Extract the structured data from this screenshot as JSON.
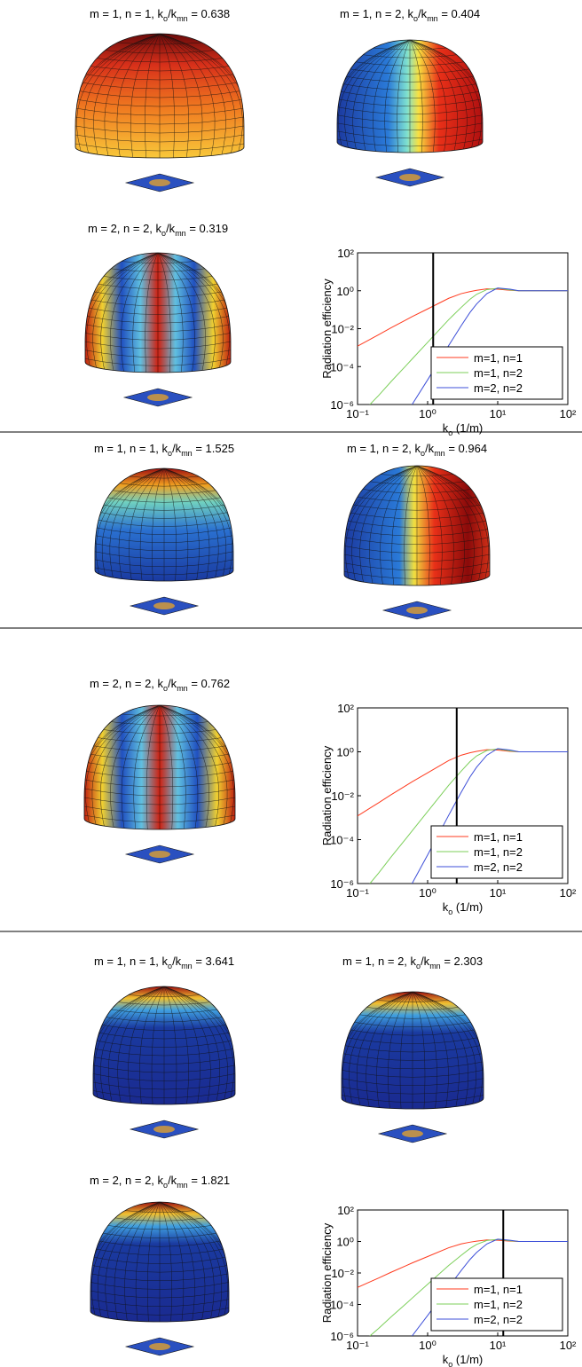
{
  "plots": [
    {
      "title": [
        "m = 1, n = 1, k",
        "o",
        "/k",
        "mn",
        " = 0.638"
      ]
    },
    {
      "title": [
        "m = 1, n = 2, k",
        "o",
        "/k",
        "mn",
        " = 0.404"
      ]
    },
    {
      "title": [
        "m = 2, n = 2, k",
        "o",
        "/k",
        "mn",
        " = 0.319"
      ]
    },
    {
      "title": [
        "m = 1, n = 1, k",
        "o",
        "/k",
        "mn",
        " = 1.525"
      ]
    },
    {
      "title": [
        "m = 1, n = 2, k",
        "o",
        "/k",
        "mn",
        " = 0.964"
      ]
    },
    {
      "title": [
        "m = 2, n = 2, k",
        "o",
        "/k",
        "mn",
        " = 0.762"
      ]
    },
    {
      "title": [
        "m = 1, n = 1, k",
        "o",
        "/k",
        "mn",
        " = 3.641"
      ]
    },
    {
      "title": [
        "m = 1, n = 2, k",
        "o",
        "/k",
        "mn",
        " = 2.303"
      ]
    },
    {
      "title": [
        "m = 2, n = 2, k",
        "o",
        "/k",
        "mn",
        " = 1.821"
      ]
    }
  ],
  "chart_data": [
    {
      "type": "line",
      "ylabel": "Radiation efficiency",
      "xlabel": [
        "k",
        "o",
        " (1/m)"
      ],
      "xscale": "log",
      "yscale": "log",
      "legend": "lower right",
      "vline": 1.2,
      "xlim": [
        0.1,
        100
      ],
      "ylim": [
        1e-06,
        100
      ],
      "xticks": [
        {
          "value": 0.1,
          "label": "10⁻¹"
        },
        {
          "value": 1,
          "label": "10⁰"
        },
        {
          "value": 10,
          "label": "10¹"
        },
        {
          "value": 100,
          "label": "10²"
        }
      ],
      "yticks": [
        {
          "value": 1e-06,
          "label": "10⁻⁶"
        },
        {
          "value": 0.0001,
          "label": "10⁻⁴"
        },
        {
          "value": 0.01,
          "label": "10⁻²"
        },
        {
          "value": 1,
          "label": "10⁰"
        },
        {
          "value": 100,
          "label": "10²"
        }
      ],
      "x": [
        0.1,
        0.15,
        0.2,
        0.3,
        0.5,
        0.6,
        1,
        2,
        3,
        4,
        5,
        7,
        10,
        15,
        20,
        30,
        50,
        100
      ],
      "series": [
        {
          "name": "m=1, n=1",
          "color": "#ff3b1f",
          "values": [
            0.0012,
            0.0027,
            0.0048,
            0.011,
            0.03,
            0.043,
            0.11,
            0.4,
            0.7,
            0.9,
            1.05,
            1.25,
            1.2,
            1.05,
            1,
            1,
            1,
            1
          ]
        },
        {
          "name": "m=1, n=2",
          "color": "#7ccf5a",
          "values": [
            null,
            1e-06,
            3e-06,
            1.6e-05,
            0.00012,
            0.00025,
            0.0019,
            0.03,
            0.13,
            0.35,
            0.65,
            1.15,
            1.35,
            1.1,
            1,
            1,
            1,
            1
          ]
        },
        {
          "name": "m=2, n=2",
          "color": "#3d4fd8",
          "values": [
            null,
            null,
            null,
            null,
            null,
            1e-06,
            2e-05,
            0.0013,
            0.014,
            0.07,
            0.2,
            0.7,
            1.4,
            1.2,
            1,
            1,
            1,
            1
          ]
        }
      ]
    },
    {
      "type": "line",
      "ylabel": "Radiation efficiency",
      "xlabel": [
        "k",
        "o",
        " (1/m)"
      ],
      "xscale": "log",
      "yscale": "log",
      "legend": "lower right",
      "vline": 2.6,
      "xlim": [
        0.1,
        100
      ],
      "ylim": [
        1e-06,
        100
      ],
      "xticks": [
        {
          "value": 0.1,
          "label": "10⁻¹"
        },
        {
          "value": 1,
          "label": "10⁰"
        },
        {
          "value": 10,
          "label": "10¹"
        },
        {
          "value": 100,
          "label": "10²"
        }
      ],
      "yticks": [
        {
          "value": 1e-06,
          "label": "10⁻⁶"
        },
        {
          "value": 0.0001,
          "label": "10⁻⁴"
        },
        {
          "value": 0.01,
          "label": "10⁻²"
        },
        {
          "value": 1,
          "label": "10⁰"
        },
        {
          "value": 100,
          "label": "10²"
        }
      ],
      "x": [
        0.1,
        0.15,
        0.2,
        0.3,
        0.5,
        0.6,
        1,
        2,
        3,
        4,
        5,
        7,
        10,
        15,
        20,
        30,
        50,
        100
      ],
      "series": [
        {
          "name": "m=1, n=1",
          "color": "#ff3b1f",
          "values": [
            0.0012,
            0.0027,
            0.0048,
            0.011,
            0.03,
            0.043,
            0.11,
            0.4,
            0.7,
            0.9,
            1.05,
            1.25,
            1.2,
            1.05,
            1,
            1,
            1,
            1
          ]
        },
        {
          "name": "m=1, n=2",
          "color": "#7ccf5a",
          "values": [
            null,
            1e-06,
            3e-06,
            1.6e-05,
            0.00012,
            0.00025,
            0.0019,
            0.03,
            0.13,
            0.35,
            0.65,
            1.15,
            1.35,
            1.1,
            1,
            1,
            1,
            1
          ]
        },
        {
          "name": "m=2, n=2",
          "color": "#3d4fd8",
          "values": [
            null,
            null,
            null,
            null,
            null,
            1e-06,
            2e-05,
            0.0013,
            0.014,
            0.07,
            0.2,
            0.7,
            1.4,
            1.2,
            1,
            1,
            1,
            1
          ]
        }
      ]
    },
    {
      "type": "line",
      "ylabel": "Radiation efficiency",
      "xlabel": [
        "k",
        "o",
        " (1/m)"
      ],
      "xscale": "log",
      "yscale": "log",
      "legend": "lower right",
      "vline": 12,
      "xlim": [
        0.1,
        100
      ],
      "ylim": [
        1e-06,
        100
      ],
      "xticks": [
        {
          "value": 0.1,
          "label": "10⁻¹"
        },
        {
          "value": 1,
          "label": "10⁰"
        },
        {
          "value": 10,
          "label": "10¹"
        },
        {
          "value": 100,
          "label": "10²"
        }
      ],
      "yticks": [
        {
          "value": 1e-06,
          "label": "10⁻⁶"
        },
        {
          "value": 0.0001,
          "label": "10⁻⁴"
        },
        {
          "value": 0.01,
          "label": "10⁻²"
        },
        {
          "value": 1,
          "label": "10⁰"
        },
        {
          "value": 100,
          "label": "10²"
        }
      ],
      "x": [
        0.1,
        0.15,
        0.2,
        0.3,
        0.5,
        0.6,
        1,
        2,
        3,
        4,
        5,
        7,
        10,
        15,
        20,
        30,
        50,
        100
      ],
      "series": [
        {
          "name": "m=1, n=1",
          "color": "#ff3b1f",
          "values": [
            0.0012,
            0.0027,
            0.0048,
            0.011,
            0.03,
            0.043,
            0.11,
            0.4,
            0.7,
            0.9,
            1.05,
            1.25,
            1.2,
            1.05,
            1,
            1,
            1,
            1
          ]
        },
        {
          "name": "m=1, n=2",
          "color": "#7ccf5a",
          "values": [
            null,
            1e-06,
            3e-06,
            1.6e-05,
            0.00012,
            0.00025,
            0.0019,
            0.03,
            0.13,
            0.35,
            0.65,
            1.15,
            1.35,
            1.1,
            1,
            1,
            1,
            1
          ]
        },
        {
          "name": "m=2, n=2",
          "color": "#3d4fd8",
          "values": [
            null,
            null,
            null,
            null,
            null,
            1e-06,
            2e-05,
            0.0013,
            0.014,
            0.07,
            0.2,
            0.7,
            1.4,
            1.2,
            1,
            1,
            1,
            1
          ]
        }
      ]
    }
  ]
}
